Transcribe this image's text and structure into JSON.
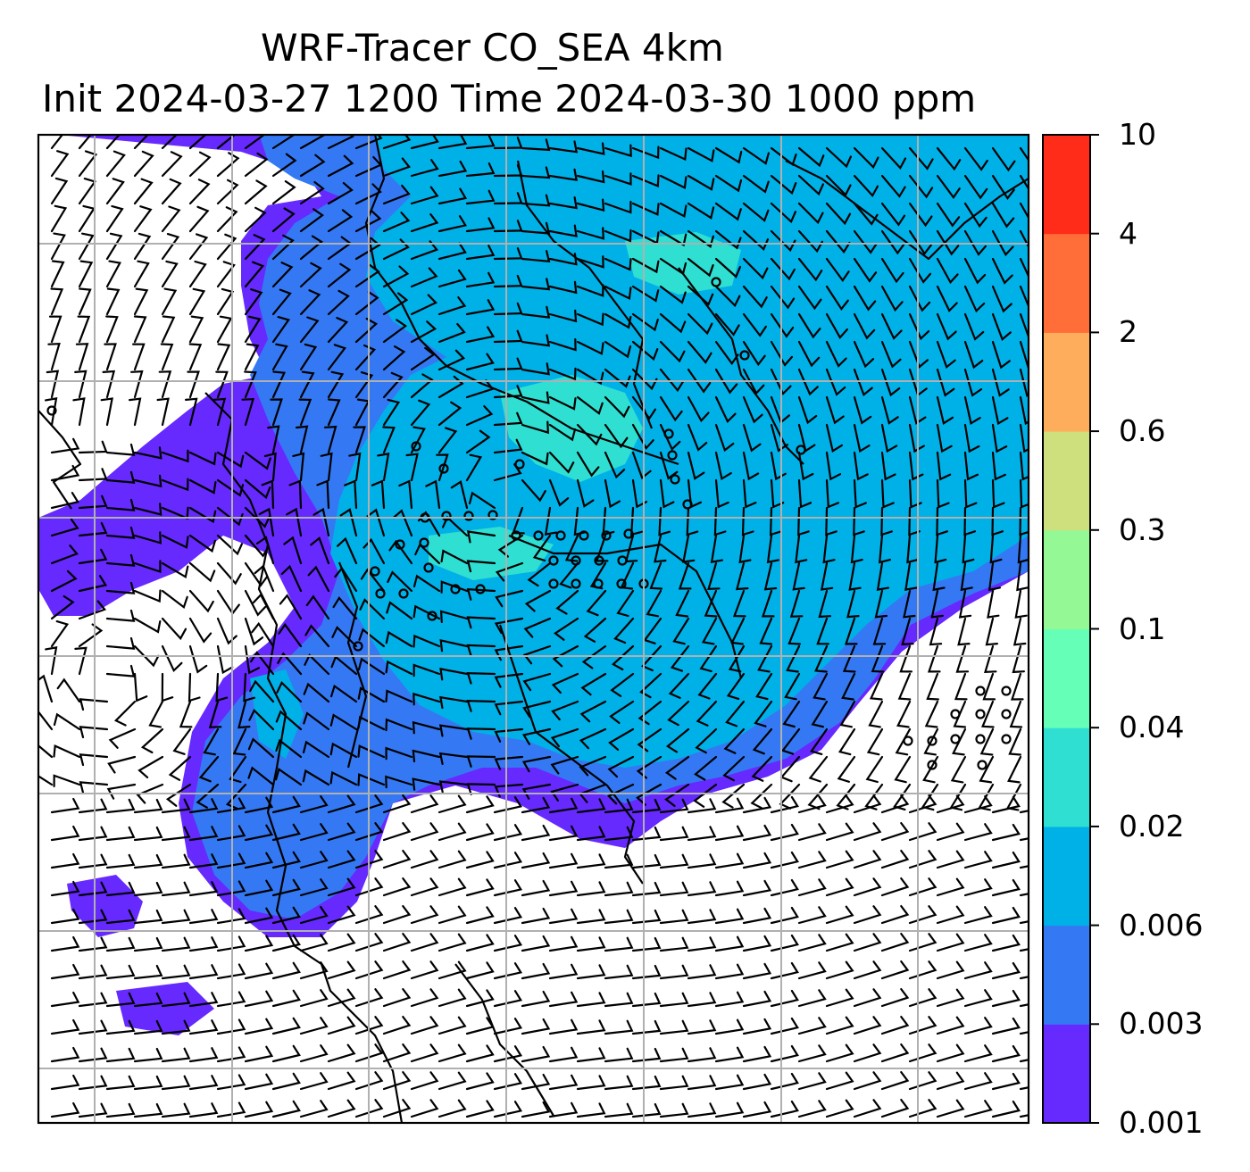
{
  "title": {
    "line1": "WRF-Tracer CO_SEA 4km",
    "line2": "Init 2024-03-27 1200 Time 2024-03-30 1000 ppm"
  },
  "colorbar": {
    "levels": [
      "0.001",
      "0.003",
      "0.006",
      "0.02",
      "0.04",
      "0.1",
      "0.3",
      "0.6",
      "2",
      "4",
      "10"
    ],
    "colors": [
      "#6629fe",
      "#3479f3",
      "#00b1e8",
      "#2fdfd2",
      "#66ffb8",
      "#94f894",
      "#cee07d",
      "#fdad5b",
      "#ff6d38",
      "#ff2c1a"
    ]
  },
  "map": {
    "background_color": "#ffffff",
    "gridline_color": "#b0b0b0",
    "barb_color": "#000000",
    "coastline_color": "#000000"
  }
}
